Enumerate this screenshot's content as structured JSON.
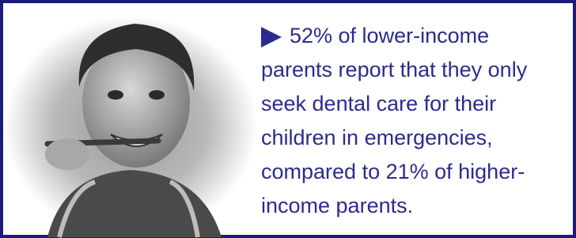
{
  "callout": {
    "lines": [
      "52% of lower-income",
      "parents report that they only",
      "seek dental care for their",
      "children in emergencies,",
      "compared to 21% of higher-",
      "income parents."
    ]
  }
}
